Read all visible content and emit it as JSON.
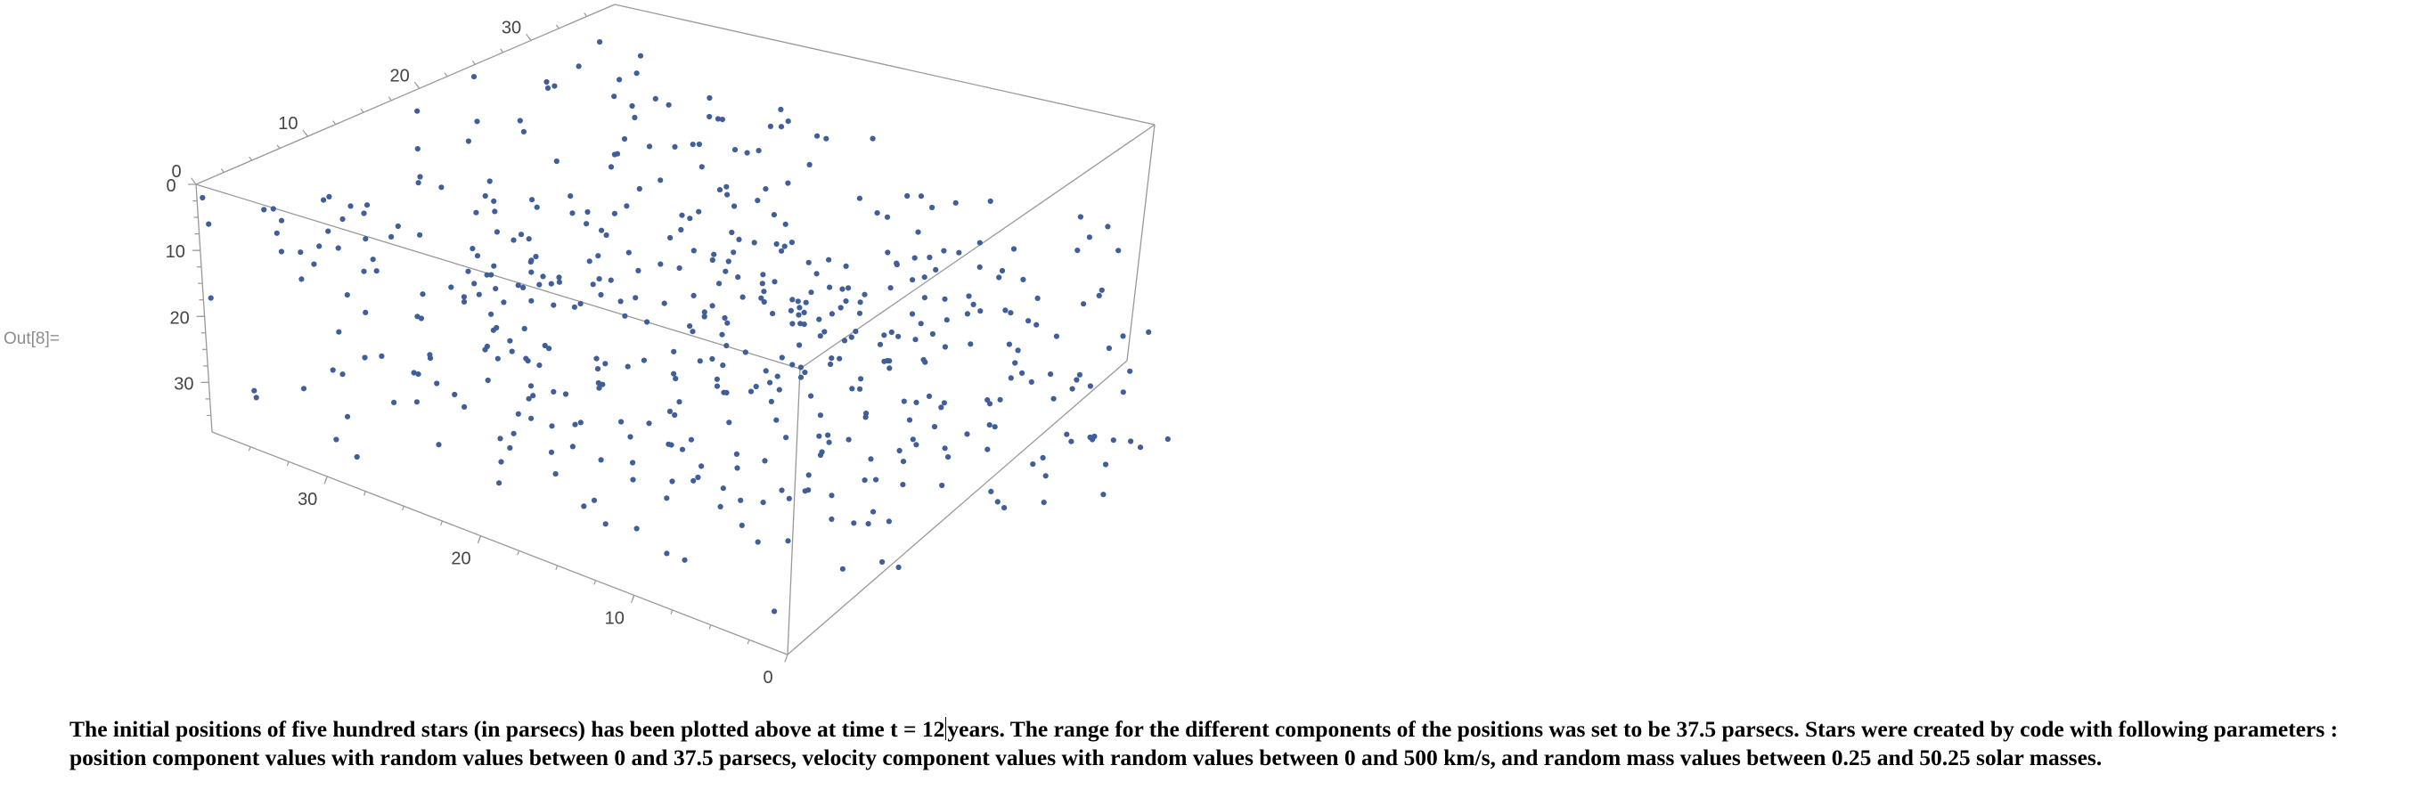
{
  "cell": {
    "out_label": "Out[8]="
  },
  "chart_data": {
    "type": "scatter",
    "dimensions": 3,
    "title": "",
    "point_count": 500,
    "axis_ticks": {
      "vertical": [
        "0",
        "10",
        "20",
        "30"
      ],
      "top_depth": [
        "0",
        "10",
        "20",
        "30"
      ],
      "bottom_depth": [
        "30",
        "20",
        "10",
        "0"
      ]
    },
    "axis_range": [
      0,
      37.5
    ],
    "marker_color": "#3f5e9a",
    "box_line_color": "#999999"
  },
  "caption": {
    "line1_a": "The initial positions of five hundred stars (in parsecs) has been plotted above at time t = 12",
    "line1_b": "years. The range for the different components of the positions was set to be 37.5 parsecs. Stars were created by code with following parameters :",
    "line2": "position component values with random values between 0 and 37.5 parsecs, velocity component values with random values between 0 and 500 km/s, and random mass values between 0.25 and 50.25 solar masses."
  }
}
